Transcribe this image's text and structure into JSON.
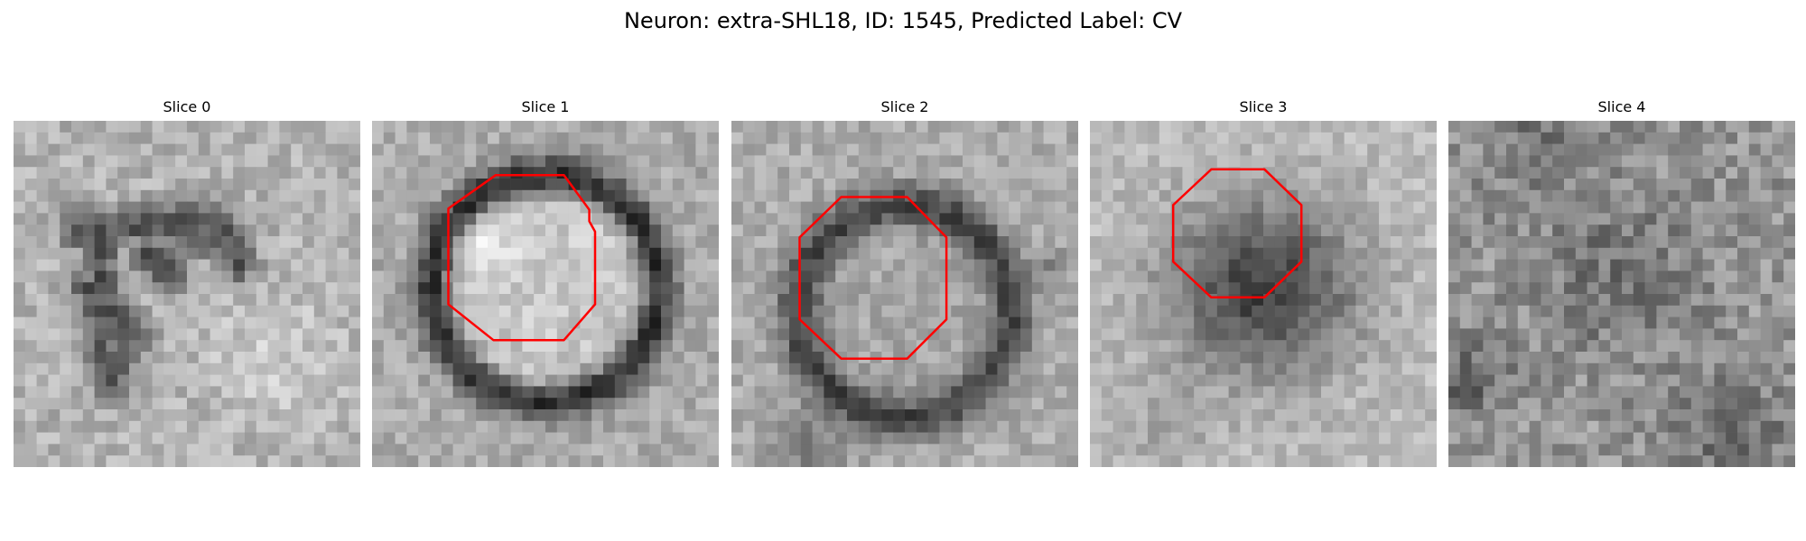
{
  "figure": {
    "title": "Neuron: extra-SHL18, ID: 1545, Predicted Label: CV"
  },
  "overlay_color": "#ff0000",
  "slices": [
    {
      "title": "Slice 0",
      "contour": "none",
      "content": "dark irregular membrane structure on grey noise"
    },
    {
      "title": "Slice 1",
      "contour": "red octagon",
      "content": "bright vesicle with thick dark ring"
    },
    {
      "title": "Slice 2",
      "contour": "red octagon",
      "content": "mid-grey vesicle with dark ring"
    },
    {
      "title": "Slice 3",
      "contour": "red octagon",
      "content": "dark blob on light background"
    },
    {
      "title": "Slice 4",
      "contour": "none",
      "content": "noisy grey texture"
    }
  ]
}
